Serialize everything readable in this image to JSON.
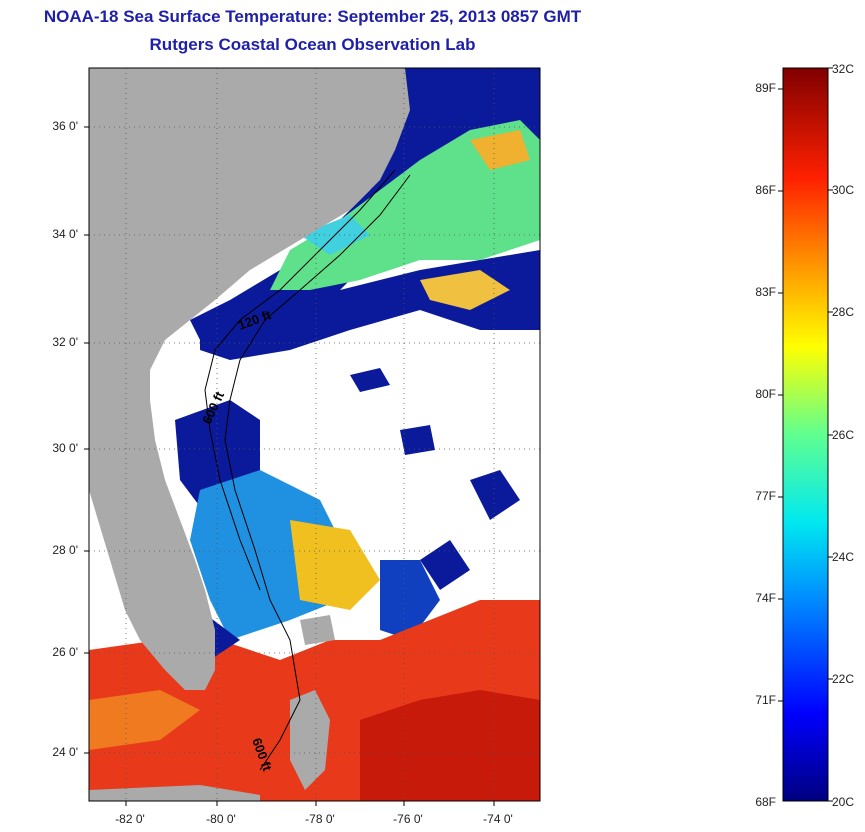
{
  "title_line1": "NOAA-18 Sea Surface Temperature:  September 25, 2013 0857 GMT",
  "title_line2": "Rutgers Coastal Ocean Observation Lab",
  "map": {
    "lon_range": [
      -83,
      -73
    ],
    "lat_range": [
      23,
      37
    ],
    "lat_ticks": [
      "36 0'",
      "34 0'",
      "32 0'",
      "30 0'",
      "28 0'",
      "26 0'",
      "24 0'"
    ],
    "lon_ticks": [
      "-82 0'",
      "-80 0'",
      "-78 0'",
      "-76 0'",
      "-74 0'"
    ],
    "contour_labels": [
      "120 ft",
      "600 ft",
      "600 ft"
    ],
    "colors": {
      "land": "#aaaaaa",
      "cloud": "#ffffff",
      "cold": "#0a1a9a",
      "warm": "#e83a1a"
    }
  },
  "colorbar": {
    "celsius_ticks": [
      "32C",
      "30C",
      "28C",
      "26C",
      "24C",
      "22C",
      "20C"
    ],
    "fahrenheit_ticks": [
      "89F",
      "86F",
      "83F",
      "80F",
      "77F",
      "74F",
      "71F",
      "68F"
    ]
  }
}
